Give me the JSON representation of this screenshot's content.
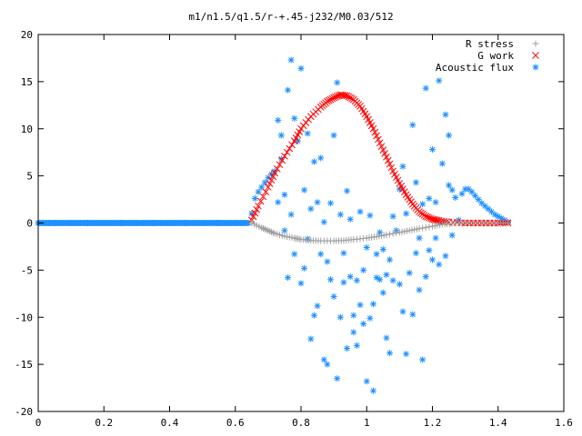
{
  "chart_data": {
    "type": "scatter",
    "title": "m1/n1.5/q1.5/r-+.45-j232/M0.03/512",
    "xlabel": "",
    "ylabel": "",
    "xlim": [
      0,
      1.6
    ],
    "ylim": [
      -20,
      20
    ],
    "x_ticks": [
      "0",
      "0.2",
      "0.4",
      "0.6",
      "0.8",
      "1",
      "1.2",
      "1.4",
      "1.6"
    ],
    "y_ticks": [
      "20",
      "15",
      "10",
      "5",
      "0",
      "-5",
      "-10",
      "-15",
      "-20"
    ],
    "grid": false,
    "legend_position": "top-right",
    "series": [
      {
        "name": "R stress",
        "marker": "plus",
        "color": "#a0a0a0",
        "points": [
          [
            0.65,
            0.0
          ],
          [
            0.68,
            -0.5
          ],
          [
            0.7,
            -0.8
          ],
          [
            0.72,
            -1.1
          ],
          [
            0.75,
            -1.4
          ],
          [
            0.78,
            -1.6
          ],
          [
            0.8,
            -1.75
          ],
          [
            0.83,
            -1.85
          ],
          [
            0.86,
            -1.9
          ],
          [
            0.9,
            -1.9
          ],
          [
            0.93,
            -1.85
          ],
          [
            0.96,
            -1.75
          ],
          [
            1.0,
            -1.6
          ],
          [
            1.03,
            -1.45
          ],
          [
            1.06,
            -1.25
          ],
          [
            1.1,
            -1.0
          ],
          [
            1.13,
            -0.8
          ],
          [
            1.16,
            -0.6
          ],
          [
            1.2,
            -0.35
          ],
          [
            1.23,
            -0.15
          ],
          [
            1.26,
            -0.05
          ],
          [
            1.3,
            0.0
          ],
          [
            1.35,
            0.0
          ],
          [
            1.4,
            0.0
          ],
          [
            1.43,
            0.0
          ]
        ]
      },
      {
        "name": "G work",
        "marker": "cross",
        "color": "#ff0000",
        "points": [
          [
            0.65,
            0.3
          ],
          [
            0.67,
            1.8
          ],
          [
            0.7,
            3.8
          ],
          [
            0.72,
            5.3
          ],
          [
            0.75,
            7.1
          ],
          [
            0.78,
            8.7
          ],
          [
            0.8,
            10.0
          ],
          [
            0.83,
            11.3
          ],
          [
            0.86,
            12.3
          ],
          [
            0.88,
            12.9
          ],
          [
            0.9,
            13.3
          ],
          [
            0.92,
            13.6
          ],
          [
            0.94,
            13.5
          ],
          [
            0.96,
            13.1
          ],
          [
            0.98,
            12.4
          ],
          [
            1.0,
            11.3
          ],
          [
            1.02,
            10.0
          ],
          [
            1.04,
            8.5
          ],
          [
            1.06,
            7.0
          ],
          [
            1.08,
            5.5
          ],
          [
            1.1,
            4.2
          ],
          [
            1.12,
            3.0
          ],
          [
            1.14,
            2.0
          ],
          [
            1.16,
            1.2
          ],
          [
            1.18,
            0.7
          ],
          [
            1.2,
            0.4
          ],
          [
            1.22,
            0.25
          ],
          [
            1.25,
            0.1
          ],
          [
            1.3,
            0.0
          ],
          [
            1.35,
            0.0
          ],
          [
            1.4,
            0.0
          ],
          [
            1.43,
            0.0
          ]
        ]
      },
      {
        "name": "Acoustic flux",
        "marker": "star",
        "color": "#1e90ff",
        "points": [
          [
            0.0,
            0.0
          ],
          [
            0.05,
            0.0
          ],
          [
            0.1,
            0.0
          ],
          [
            0.15,
            0.0
          ],
          [
            0.2,
            0.0
          ],
          [
            0.25,
            0.0
          ],
          [
            0.3,
            0.0
          ],
          [
            0.35,
            0.0
          ],
          [
            0.4,
            0.0
          ],
          [
            0.45,
            0.0
          ],
          [
            0.5,
            0.0
          ],
          [
            0.55,
            0.0
          ],
          [
            0.6,
            0.0
          ],
          [
            0.64,
            0.0
          ],
          [
            0.65,
            1.0
          ],
          [
            0.66,
            2.6
          ],
          [
            0.67,
            3.3
          ],
          [
            0.68,
            3.8
          ],
          [
            0.69,
            4.3
          ],
          [
            0.7,
            4.8
          ],
          [
            0.71,
            5.2
          ],
          [
            0.72,
            5.5
          ],
          [
            0.73,
            2.2
          ],
          [
            0.73,
            10.9
          ],
          [
            0.74,
            9.3
          ],
          [
            0.74,
            6.8
          ],
          [
            0.75,
            -0.8
          ],
          [
            0.75,
            3.0
          ],
          [
            0.76,
            14.1
          ],
          [
            0.76,
            -5.8
          ],
          [
            0.77,
            17.3
          ],
          [
            0.77,
            0.9
          ],
          [
            0.78,
            11.1
          ],
          [
            0.78,
            -3.3
          ],
          [
            0.79,
            8.7
          ],
          [
            0.8,
            -6.4
          ],
          [
            0.8,
            16.4
          ],
          [
            0.81,
            3.5
          ],
          [
            0.81,
            -4.8
          ],
          [
            0.82,
            -1.7
          ],
          [
            0.82,
            9.5
          ],
          [
            0.83,
            -12.3
          ],
          [
            0.83,
            1.5
          ],
          [
            0.84,
            -9.8
          ],
          [
            0.84,
            6.5
          ],
          [
            0.85,
            -8.8
          ],
          [
            0.85,
            2.2
          ],
          [
            0.86,
            -3.3
          ],
          [
            0.86,
            6.9
          ],
          [
            0.87,
            -14.5
          ],
          [
            0.87,
            0.1
          ],
          [
            0.88,
            -15.0
          ],
          [
            0.88,
            -4.1
          ],
          [
            0.89,
            -6.0
          ],
          [
            0.89,
            2.1
          ],
          [
            0.9,
            -7.8
          ],
          [
            0.9,
            9.3
          ],
          [
            0.91,
            14.9
          ],
          [
            0.91,
            -16.5
          ],
          [
            0.92,
            0.9
          ],
          [
            0.92,
            -10.0
          ],
          [
            0.93,
            -6.3
          ],
          [
            0.93,
            -3.2
          ],
          [
            0.94,
            3.4
          ],
          [
            0.94,
            -13.3
          ],
          [
            0.95,
            -5.7
          ],
          [
            0.95,
            0.4
          ],
          [
            0.96,
            -11.6
          ],
          [
            0.96,
            -9.8
          ],
          [
            0.97,
            -6.1
          ],
          [
            0.97,
            -13.0
          ],
          [
            0.98,
            1.2
          ],
          [
            0.98,
            -8.7
          ],
          [
            0.99,
            -5.0
          ],
          [
            0.99,
            -10.7
          ],
          [
            1.0,
            -16.8
          ],
          [
            1.0,
            -2.6
          ],
          [
            1.01,
            -10.1
          ],
          [
            1.01,
            0.8
          ],
          [
            1.02,
            -8.6
          ],
          [
            1.02,
            -17.8
          ],
          [
            1.03,
            -5.8
          ],
          [
            1.03,
            -3.3
          ],
          [
            1.04,
            -1.0
          ],
          [
            1.04,
            -6.0
          ],
          [
            1.05,
            -7.4
          ],
          [
            1.05,
            -2.8
          ],
          [
            1.06,
            -12.2
          ],
          [
            1.06,
            -5.5
          ],
          [
            1.07,
            -13.8
          ],
          [
            1.07,
            -3.9
          ],
          [
            1.08,
            0.7
          ],
          [
            1.08,
            -6.1
          ],
          [
            1.09,
            -0.8
          ],
          [
            1.1,
            3.6
          ],
          [
            1.1,
            -6.5
          ],
          [
            1.11,
            6.0
          ],
          [
            1.11,
            -9.4
          ],
          [
            1.12,
            1.0
          ],
          [
            1.12,
            -13.9
          ],
          [
            1.13,
            -5.3
          ],
          [
            1.14,
            -9.7
          ],
          [
            1.14,
            10.4
          ],
          [
            1.15,
            -3.2
          ],
          [
            1.15,
            4.3
          ],
          [
            1.16,
            -7.1
          ],
          [
            1.16,
            -1.6
          ],
          [
            1.17,
            2.0
          ],
          [
            1.17,
            -14.5
          ],
          [
            1.18,
            14.3
          ],
          [
            1.18,
            -5.7
          ],
          [
            1.19,
            -2.9
          ],
          [
            1.19,
            2.6
          ],
          [
            1.2,
            -3.9
          ],
          [
            1.2,
            7.8
          ],
          [
            1.21,
            2.2
          ],
          [
            1.21,
            -1.6
          ],
          [
            1.22,
            15.1
          ],
          [
            1.22,
            -4.4
          ],
          [
            1.23,
            0.1
          ],
          [
            1.23,
            6.3
          ],
          [
            1.24,
            -3.5
          ],
          [
            1.24,
            11.5
          ],
          [
            1.25,
            9.3
          ],
          [
            1.25,
            4.0
          ],
          [
            1.26,
            -1.3
          ],
          [
            1.26,
            3.5
          ],
          [
            1.27,
            2.7
          ],
          [
            1.28,
            0.3
          ],
          [
            1.29,
            3.1
          ],
          [
            1.3,
            3.6
          ],
          [
            1.31,
            3.6
          ],
          [
            1.32,
            3.3
          ],
          [
            1.33,
            2.9
          ],
          [
            1.34,
            2.5
          ],
          [
            1.35,
            2.1
          ],
          [
            1.36,
            1.8
          ],
          [
            1.37,
            1.5
          ],
          [
            1.38,
            1.2
          ],
          [
            1.39,
            0.9
          ],
          [
            1.4,
            0.7
          ],
          [
            1.41,
            0.5
          ],
          [
            1.42,
            0.3
          ],
          [
            1.43,
            0.1
          ]
        ]
      }
    ]
  }
}
